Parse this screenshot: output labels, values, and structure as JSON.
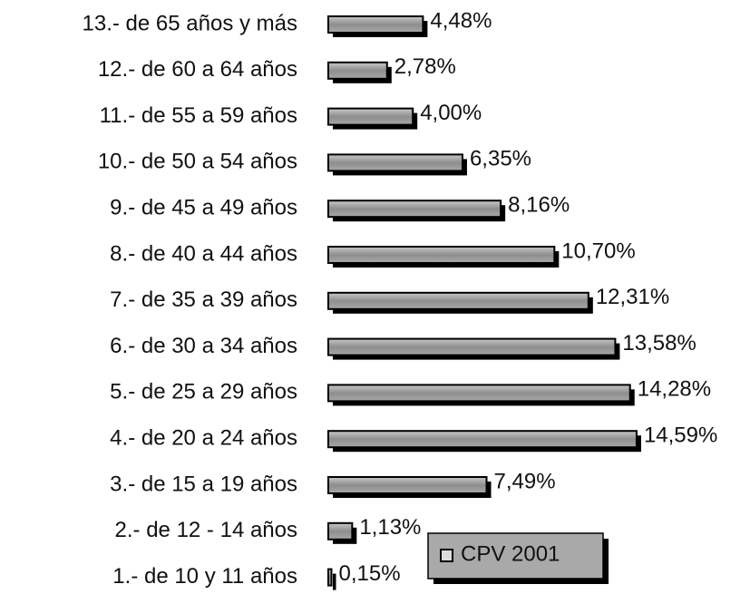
{
  "chart_data": {
    "type": "hbar",
    "categories": [
      "13.- de 65 años y más",
      "12.- de 60 a 64 años",
      "11.- de 55 a 59 años",
      "10.- de 50 a 54 años",
      "9.- de 45 a 49 años",
      "8.- de 40 a 44 años",
      "7.- de 35 a 39 años",
      "6.- de 30 a 34 años",
      "5.- de 25 a 29 años",
      "4.- de 20 a 24 años",
      "3.- de 15 a 19 años",
      "2.- de 12 - 14 años",
      "1.- de 10 y 11 años"
    ],
    "series": [
      {
        "name": "CPV 2001",
        "color": "#9a9a9a",
        "values": [
          4.48,
          2.78,
          4.0,
          6.35,
          8.16,
          10.7,
          12.31,
          13.58,
          14.28,
          14.59,
          7.49,
          1.13,
          0.15
        ],
        "value_labels": [
          "4,48%",
          "2,78%",
          "4,00%",
          "6,35%",
          "8,16%",
          "10,70%",
          "12,31%",
          "13,58%",
          "14,28%",
          "14,59%",
          "7,49%",
          "1,13%",
          "0,15%"
        ]
      }
    ]
  }
}
